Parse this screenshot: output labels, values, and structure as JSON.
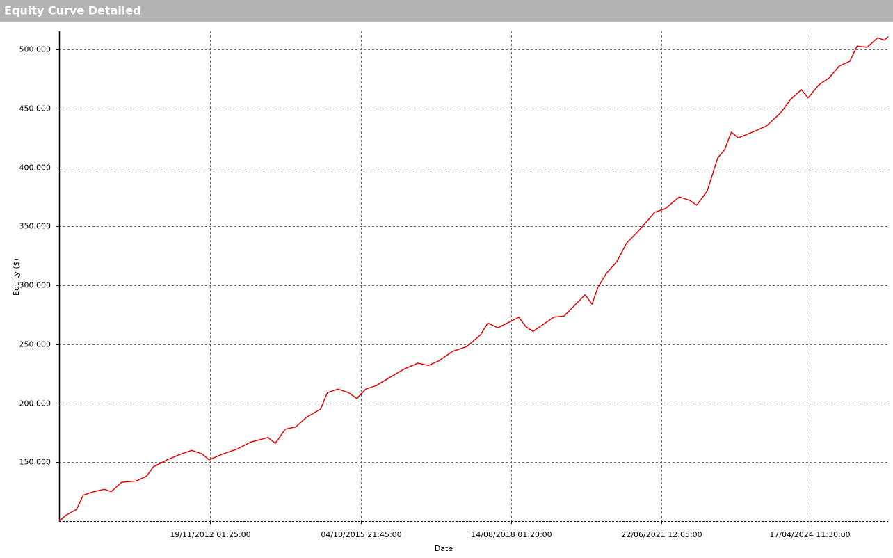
{
  "chart_data": {
    "type": "line",
    "title": "Equity Curve Detailed",
    "x_label": "Date",
    "y_label": "Equity ($)",
    "color": "#e60000",
    "grid": true,
    "x": [
      2010.02,
      2010.15,
      2010.35,
      2010.48,
      2010.68,
      2010.88,
      2011.01,
      2011.21,
      2011.48,
      2011.68,
      2011.81,
      2012.07,
      2012.34,
      2012.54,
      2012.74,
      2012.87,
      2013.13,
      2013.4,
      2013.66,
      2013.99,
      2014.13,
      2014.32,
      2014.52,
      2014.72,
      2014.99,
      2015.12,
      2015.32,
      2015.52,
      2015.68,
      2015.85,
      2016.05,
      2016.31,
      2016.58,
      2016.84,
      2017.04,
      2017.24,
      2017.5,
      2017.77,
      2018.03,
      2018.17,
      2018.36,
      2018.63,
      2018.76,
      2018.89,
      2019.03,
      2019.23,
      2019.42,
      2019.62,
      2019.82,
      2020.02,
      2020.15,
      2020.26,
      2020.42,
      2020.62,
      2020.81,
      2021.01,
      2021.15,
      2021.34,
      2021.54,
      2021.81,
      2022.01,
      2022.14,
      2022.34,
      2022.54,
      2022.67,
      2022.8,
      2022.93,
      2023.2,
      2023.46,
      2023.73,
      2023.93,
      2024.13,
      2024.26,
      2024.46,
      2024.66,
      2024.85,
      2025.05,
      2025.19,
      2025.38,
      2025.58,
      2025.71,
      2025.78
    ],
    "values": [
      100000,
      105000,
      110000,
      122000,
      125000,
      127000,
      125000,
      133000,
      134000,
      138000,
      146000,
      152000,
      157000,
      160000,
      157000,
      152000,
      157000,
      161000,
      167000,
      171000,
      166000,
      178000,
      180000,
      188000,
      195000,
      209000,
      212000,
      209000,
      204000,
      212000,
      215000,
      222000,
      229000,
      234000,
      232000,
      236000,
      244000,
      248000,
      258000,
      268000,
      264000,
      270000,
      273000,
      265000,
      261000,
      267000,
      273000,
      274000,
      283000,
      292000,
      284000,
      298000,
      310000,
      320000,
      336000,
      345000,
      352000,
      362000,
      365000,
      375000,
      372000,
      368000,
      380000,
      408000,
      415000,
      430000,
      425000,
      430000,
      435000,
      446000,
      458000,
      466000,
      459000,
      470000,
      476000,
      486000,
      490000,
      503000,
      502000,
      510000,
      508000,
      511000
    ],
    "xlim": [
      2010.02,
      2025.78
    ],
    "xticks": [
      {
        "value": 2012.884,
        "label": "19/11/2012 01:25:00"
      },
      {
        "value": 2015.758,
        "label": "04/10/2015 21:45:00"
      },
      {
        "value": 2018.617,
        "label": "14/08/2018 01:20:00"
      },
      {
        "value": 2021.474,
        "label": "22/06/2021 12:05:00"
      },
      {
        "value": 2024.292,
        "label": "17/04/2024 11:30:00"
      }
    ],
    "ylim": [
      100000,
      515500
    ],
    "yticks": [
      {
        "value": 150000,
        "label": "150.000"
      },
      {
        "value": 200000,
        "label": "200.000"
      },
      {
        "value": 250000,
        "label": "250.000"
      },
      {
        "value": 300000,
        "label": "300.000"
      },
      {
        "value": 350000,
        "label": "350.000"
      },
      {
        "value": 400000,
        "label": "400.000"
      },
      {
        "value": 450000,
        "label": "450.000"
      },
      {
        "value": 500000,
        "label": "500.000"
      }
    ]
  }
}
